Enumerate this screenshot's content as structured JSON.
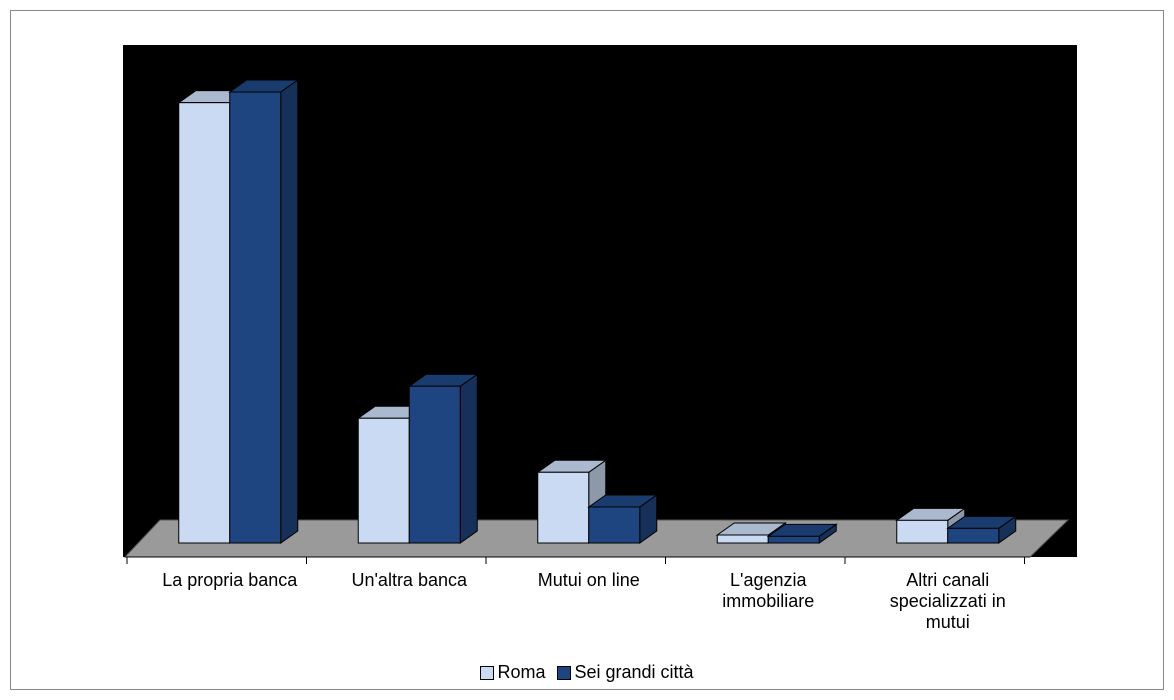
{
  "chart_data": {
    "type": "bar3d",
    "categories": [
      "La propria banca",
      "Un'altra banca",
      "Mutui on line",
      "L'agenzia immobiliare",
      "Altri canali specializzati in mutui"
    ],
    "series": [
      {
        "name": "Roma",
        "color": "#c9daf2",
        "values": [
          66,
          18.7,
          10.6,
          1.2,
          3.4
        ]
      },
      {
        "name": "Sei grandi città",
        "color": "#1f4580",
        "values": [
          67.6,
          23.5,
          5.4,
          1,
          2.2
        ]
      }
    ],
    "ylim": [
      0,
      70
    ],
    "legend": "bottom"
  }
}
